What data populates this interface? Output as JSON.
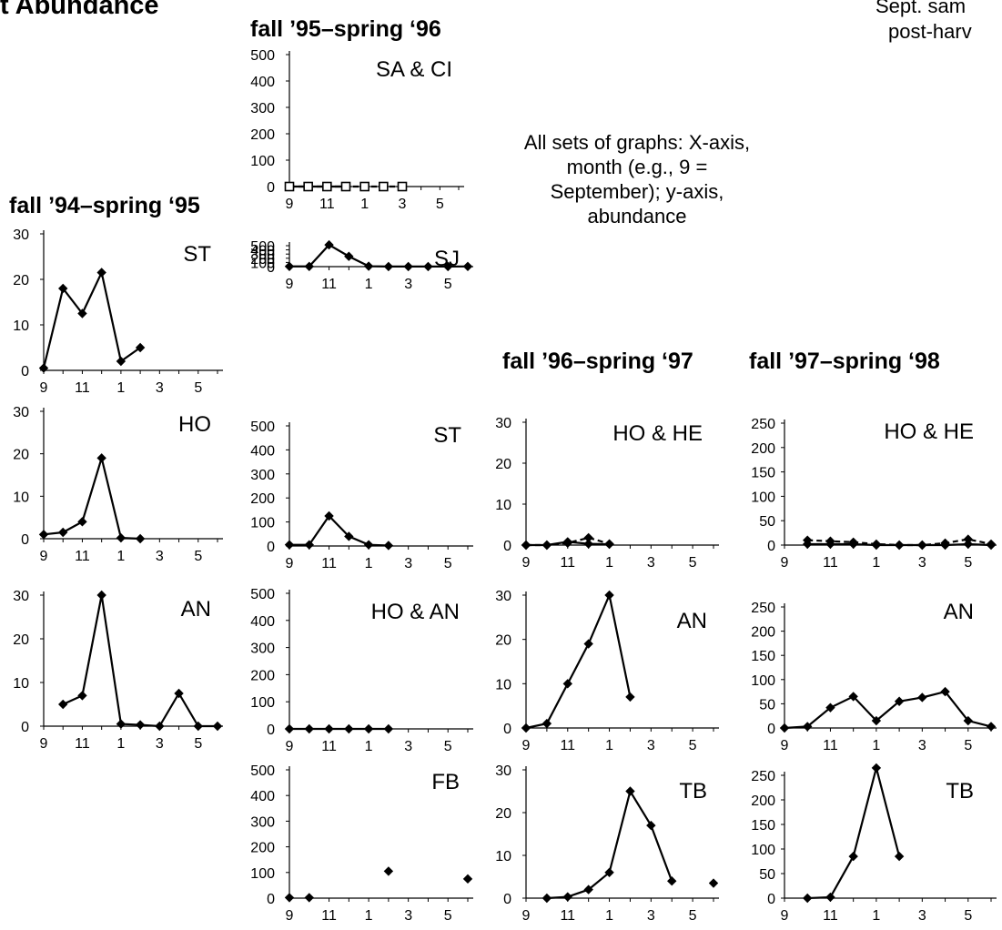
{
  "header": {
    "title_fragment": "t Abundance",
    "corner_line1": "Sept. sam",
    "corner_line2": "post-harv"
  },
  "note": "All sets of graphs: X-axis, month (e.g., 9 = September); y-axis, abundance",
  "season_titles": {
    "s9596": "fall ’95–spring ‘96",
    "s9495": "fall ’94–spring ‘95",
    "s9697": "fall ’96–spring ‘97",
    "s9798": "fall ’97–spring ‘98"
  },
  "x_ticks": [
    "9",
    "11",
    "1",
    "3",
    "5"
  ],
  "chart_data": [
    {
      "id": "p0",
      "season": "fall ’95–spring ‘96",
      "label": "SA & CI",
      "type": "line",
      "ylim": [
        0,
        500
      ],
      "yticks": [
        0,
        100,
        200,
        300,
        400,
        500
      ],
      "series": [
        {
          "marker": "diamond",
          "line": "solid",
          "x": [
            9,
            10,
            11,
            12
          ],
          "y": [
            0,
            0,
            0,
            0
          ]
        },
        {
          "marker": "open-square",
          "line": "dashed",
          "x": [
            9,
            10,
            11,
            12,
            1,
            2,
            3
          ],
          "y": [
            0,
            0,
            0,
            0,
            0,
            0,
            0
          ]
        }
      ]
    },
    {
      "id": "p1",
      "season": "fall ’94–spring ‘95",
      "label": "ST",
      "type": "line",
      "ylim": [
        0,
        30
      ],
      "yticks": [
        0,
        10,
        20,
        30
      ],
      "series": [
        {
          "marker": "diamond",
          "line": "solid",
          "x": [
            9,
            10,
            11,
            12,
            1,
            2
          ],
          "y": [
            0.5,
            18,
            12.5,
            21.5,
            2,
            5
          ]
        }
      ]
    },
    {
      "id": "p2",
      "season": "fall ’95–spring ‘96",
      "label": "SJ",
      "type": "line",
      "ylim": [
        0,
        500
      ],
      "yticks": [
        0,
        100,
        200,
        300,
        400,
        500
      ],
      "series": [
        {
          "marker": "diamond",
          "line": "solid",
          "x": [
            9,
            10,
            11,
            12,
            1,
            2,
            3,
            4,
            5,
            6
          ],
          "y": [
            5,
            5,
            520,
            245,
            10,
            2,
            2,
            2,
            2,
            5
          ]
        }
      ]
    },
    {
      "id": "p3",
      "season": "fall ’94–spring ‘95",
      "label": "HO",
      "type": "line",
      "ylim": [
        0,
        30
      ],
      "yticks": [
        0,
        10,
        20,
        30
      ],
      "series": [
        {
          "marker": "diamond",
          "line": "solid",
          "x": [
            9,
            10,
            11,
            12,
            1,
            2
          ],
          "y": [
            1,
            1.5,
            4,
            19,
            0.2,
            0
          ]
        }
      ]
    },
    {
      "id": "p4",
      "season": "fall ’95–spring ‘96",
      "label": "ST",
      "type": "line",
      "ylim": [
        0,
        500
      ],
      "yticks": [
        0,
        100,
        200,
        300,
        400,
        500
      ],
      "series": [
        {
          "marker": "diamond",
          "line": "solid",
          "x": [
            9,
            10,
            11,
            12,
            1,
            2
          ],
          "y": [
            5,
            5,
            125,
            40,
            5,
            2
          ]
        }
      ]
    },
    {
      "id": "p5",
      "season": "fall ’96–spring ‘97",
      "label": "HO & HE",
      "type": "line",
      "ylim": [
        0,
        30
      ],
      "yticks": [
        0,
        10,
        20,
        30
      ],
      "series": [
        {
          "marker": "diamond",
          "line": "solid",
          "x": [
            9,
            10,
            11,
            12,
            1
          ],
          "y": [
            0,
            0,
            0.8,
            0.3,
            0.2
          ]
        },
        {
          "marker": "diamond",
          "line": "dashed",
          "x": [
            9,
            10,
            11,
            12,
            1
          ],
          "y": [
            0,
            0,
            0.5,
            1.8,
            0.3
          ]
        }
      ]
    },
    {
      "id": "p6",
      "season": "fall ’97–spring ‘98",
      "label": "HO & HE",
      "type": "line",
      "ylim": [
        0,
        250
      ],
      "yticks": [
        0,
        50,
        100,
        150,
        200,
        250
      ],
      "series": [
        {
          "marker": "diamond",
          "line": "solid",
          "x": [
            10,
            11,
            12,
            1,
            2,
            3,
            4,
            5,
            6
          ],
          "y": [
            2,
            2,
            2,
            0,
            0,
            0,
            0,
            2,
            0
          ]
        },
        {
          "marker": "diamond",
          "line": "dashed",
          "x": [
            10,
            11,
            12,
            1,
            2,
            3,
            4,
            5,
            6
          ],
          "y": [
            10,
            8,
            6,
            2,
            0,
            0,
            4,
            12,
            2
          ]
        }
      ]
    },
    {
      "id": "p7",
      "season": "fall ’94–spring ‘95",
      "label": "AN",
      "type": "line",
      "ylim": [
        0,
        30
      ],
      "yticks": [
        0,
        10,
        20,
        30
      ],
      "series": [
        {
          "marker": "diamond",
          "line": "solid",
          "x": [
            10,
            11,
            12,
            1,
            2,
            3,
            4,
            5,
            6
          ],
          "y": [
            5,
            7,
            30,
            0.5,
            0.3,
            0,
            7.5,
            0,
            0
          ]
        }
      ]
    },
    {
      "id": "p8",
      "season": "fall ’95–spring ‘96",
      "label": "HO & AN",
      "type": "line",
      "ylim": [
        0,
        500
      ],
      "yticks": [
        0,
        100,
        200,
        300,
        400,
        500
      ],
      "series": [
        {
          "marker": "diamond",
          "line": "solid",
          "x": [
            9,
            10,
            11,
            12,
            1,
            2
          ],
          "y": [
            0,
            0,
            0,
            0,
            0,
            0
          ]
        }
      ]
    },
    {
      "id": "p9",
      "season": "fall ’96–spring ‘97",
      "label": "AN",
      "type": "line",
      "ylim": [
        0,
        30
      ],
      "yticks": [
        0,
        10,
        20,
        30
      ],
      "series": [
        {
          "marker": "diamond",
          "line": "solid",
          "x": [
            9,
            10,
            11,
            12,
            1,
            2
          ],
          "y": [
            0,
            1,
            10,
            19,
            30,
            7
          ]
        }
      ]
    },
    {
      "id": "p10",
      "season": "fall ’97–spring ‘98",
      "label": "AN",
      "type": "line",
      "ylim": [
        0,
        250
      ],
      "yticks": [
        0,
        50,
        100,
        150,
        200,
        250
      ],
      "series": [
        {
          "marker": "diamond",
          "line": "solid",
          "x": [
            9,
            10,
            11,
            12,
            1,
            2,
            3,
            4,
            5,
            6
          ],
          "y": [
            0,
            3,
            42,
            65,
            15,
            55,
            63,
            75,
            15,
            3
          ]
        }
      ]
    },
    {
      "id": "p11",
      "season": "fall ’95–spring ‘96",
      "label": "FB",
      "type": "scatter",
      "ylim": [
        0,
        500
      ],
      "yticks": [
        0,
        100,
        200,
        300,
        400,
        500
      ],
      "series": [
        {
          "marker": "diamond",
          "line": "none",
          "x": [
            9,
            10,
            2,
            6
          ],
          "y": [
            2,
            2,
            105,
            75
          ]
        }
      ]
    },
    {
      "id": "p12",
      "season": "fall ’96–spring ‘97",
      "label": "TB",
      "type": "line",
      "ylim": [
        0,
        30
      ],
      "yticks": [
        0,
        10,
        20,
        30
      ],
      "series": [
        {
          "marker": "diamond",
          "line": "solid",
          "x": [
            10,
            11,
            12,
            1,
            2,
            3,
            4
          ],
          "y": [
            0,
            0.3,
            2,
            6,
            25,
            17,
            4
          ]
        },
        {
          "marker": "diamond",
          "line": "none",
          "x": [
            6
          ],
          "y": [
            3.5
          ]
        }
      ]
    },
    {
      "id": "p13",
      "season": "fall ’97–spring ‘98",
      "label": "TB",
      "type": "line",
      "ylim": [
        0,
        250
      ],
      "yticks": [
        0,
        50,
        100,
        150,
        200,
        250
      ],
      "series": [
        {
          "marker": "diamond",
          "line": "solid",
          "x": [
            10,
            11,
            12,
            1,
            2
          ],
          "y": [
            0,
            2,
            85,
            265,
            85
          ]
        }
      ]
    }
  ]
}
